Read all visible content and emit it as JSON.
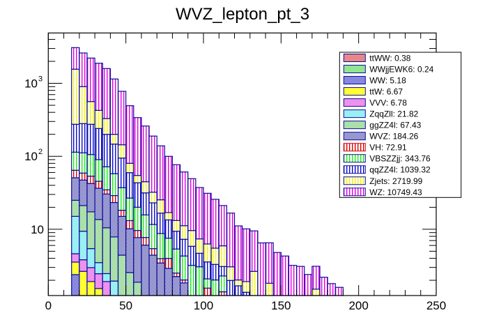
{
  "chart_data": {
    "type": "bar",
    "subtype": "stacked-histogram",
    "title": "WVZ_lepton_pt_3",
    "xlabel": "",
    "ylabel": "",
    "xlim": [
      0,
      250
    ],
    "ylim": [
      1.235,
      4894
    ],
    "yscale": "log",
    "bin_width": 5,
    "bin_start": 15,
    "x_ticks": [
      0,
      50,
      100,
      150,
      200,
      250
    ],
    "x_tick_labels": [
      "0",
      "50",
      "100",
      "150",
      "200",
      "250"
    ],
    "y_ticks": [
      10,
      100,
      1000
    ],
    "y_tick_labels": [
      {
        "base": "10",
        "exp": ""
      },
      {
        "base": "10",
        "exp": "2"
      },
      {
        "base": "10",
        "exp": "3"
      }
    ],
    "grid": false,
    "legend_position": "top-right",
    "series": [
      {
        "name": "ttWW",
        "label": "ttWW: 0.38",
        "color": "#d01010",
        "pattern": "checker",
        "values": []
      },
      {
        "name": "WWjjEWK6",
        "label": "WWjjEWK6: 0.24",
        "color": "#22cc22",
        "pattern": "checker",
        "values": []
      },
      {
        "name": "WW",
        "label": "WW: 5.18",
        "color": "#1010c0",
        "pattern": "checker",
        "values": [
          2.39
        ]
      },
      {
        "name": "ttW",
        "label": "ttW: 6.67",
        "color": "#ffff33",
        "pattern": "solid",
        "values": [
          1.16,
          2.65,
          1.92,
          1.54
        ]
      },
      {
        "name": "VVV",
        "label": "VVV: 6.78",
        "color": "#dd22dd",
        "pattern": "checker",
        "values": [
          1.07,
          1.17,
          1.06,
          0.92,
          1.92
        ]
      },
      {
        "name": "ZqqZll",
        "label": "ZqqZll: 21.82",
        "color": "#33e0e8",
        "pattern": "checker",
        "values": [
          10.4,
          5.58,
          2.45,
          1.03,
          0.55,
          1.95
        ]
      },
      {
        "name": "ggZZ4l",
        "label": "ggZZ4l: 67.43",
        "color": "#55c055",
        "pattern": "checker",
        "values": [
          9.9,
          11.7,
          11.9,
          10.1,
          8.0,
          5.9,
          4.42,
          2.55,
          1.88
        ]
      },
      {
        "name": "WVZ",
        "label": "WVZ: 184.26",
        "color": "#3030a0",
        "pattern": "checker",
        "values": [
          25.9,
          26.1,
          25.0,
          22.9,
          19.9,
          15.4,
          10.6,
          7.6,
          5.8,
          6.06,
          4.42,
          3.45,
          2.91,
          2.25,
          1.84
        ]
      },
      {
        "name": "VH",
        "label": "VH: 72.91",
        "color": "#e00000",
        "pattern": "vlines",
        "values": [
          13.5,
          11.7,
          11.1,
          9.0,
          4.3,
          5.7,
          3.2,
          3.0,
          1.95,
          1.66,
          1.01,
          0.51,
          1.08,
          0.26,
          0.18,
          0,
          0,
          1.56,
          0,
          1.39
        ]
      },
      {
        "name": "VBSZZjj",
        "label": "VBSZZjj: 343.76",
        "color": "#11ee11",
        "pattern": "vlines",
        "values": [
          49.5,
          52.5,
          52.2,
          44.5,
          37.1,
          28.7,
          18.9,
          13.6,
          10.4,
          8.0,
          6.2,
          4.78,
          3.55,
          2.85,
          2.28,
          3.2,
          3.06,
          0.53,
          2.02,
          0.9
        ]
      },
      {
        "name": "qqZZ4l",
        "label": "qqZZ4l: 1039.32",
        "color": "#0a0ad0",
        "pattern": "vlines",
        "values": [
          160.6,
          169.0,
          168.8,
          150.5,
          128.0,
          89.3,
          57.5,
          32.9,
          23.3,
          15.8,
          11.4,
          7.9,
          5.9,
          4.04,
          2.99,
          2.65,
          1.63,
          1.48,
          1.28,
          0.8,
          1.99,
          1.68,
          1.37
        ]
      },
      {
        "name": "Zjets",
        "label": "Zjets: 2719.99",
        "color": "#f4f400",
        "pattern": "vlines",
        "values": [
          1285.6,
          620.0,
          288.0,
          185.5,
          129.0,
          53.1,
          49.2,
          20.5,
          11.3,
          13.3,
          9.2,
          8.7,
          3.5,
          3.8,
          3.9,
          3.76,
          2.69,
          2.72,
          2.21,
          2.84,
          1.07,
          0.34,
          0.55,
          2.65,
          0,
          1.82,
          0,
          0,
          0,
          0,
          0,
          1.51
        ]
      },
      {
        "name": "WZ",
        "label": "WZ: 10749.43",
        "color": "#e000e0",
        "pattern": "vlines",
        "values": [
          1523.0,
          1703.0,
          1655.0,
          1458.0,
          1265.0,
          946.0,
          633.0,
          413.0,
          284.0,
          215.0,
          157.0,
          113.7,
          82.9,
          63.4,
          49.8,
          39.7,
          29.9,
          24.8,
          20.2,
          15.2,
          13.6,
          9.1,
          8.2,
          6.85,
          6.5,
          4.7,
          4.8,
          4.3,
          3.2,
          3.1,
          2.4,
          1.6,
          2.2,
          1.8,
          1.6
        ]
      }
    ]
  }
}
